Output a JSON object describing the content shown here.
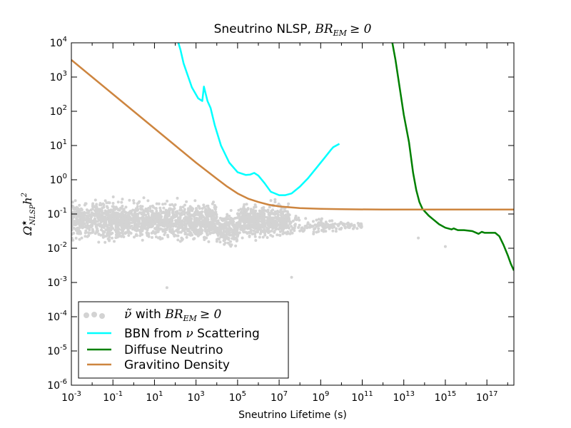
{
  "chart_data": {
    "type": "line",
    "title": {
      "text": "Sneutrino NLSP, ",
      "math": "BR",
      "math_sub": "EM",
      "math_rel": "≥ 0"
    },
    "xlabel": "Sneutrino Lifetime (s)",
    "ylabel": {
      "symbol": "Ω",
      "sup": "★",
      "sub": "NLSP",
      "tail": "h",
      "tail_sup": "2"
    },
    "xscale": "log",
    "yscale": "log",
    "xlim_exp": [
      -3,
      18.3
    ],
    "ylim_exp": [
      -6,
      4
    ],
    "x_ticks": [
      {
        "base": "10",
        "exp": "-3",
        "value": -3
      },
      {
        "base": "10",
        "exp": "-1",
        "value": -1
      },
      {
        "base": "10",
        "exp": "1",
        "value": 1
      },
      {
        "base": "10",
        "exp": "3",
        "value": 3
      },
      {
        "base": "10",
        "exp": "5",
        "value": 5
      },
      {
        "base": "10",
        "exp": "7",
        "value": 7
      },
      {
        "base": "10",
        "exp": "9",
        "value": 9
      },
      {
        "base": "10",
        "exp": "11",
        "value": 11
      },
      {
        "base": "10",
        "exp": "13",
        "value": 13
      },
      {
        "base": "10",
        "exp": "15",
        "value": 15
      },
      {
        "base": "10",
        "exp": "17",
        "value": 17
      }
    ],
    "y_ticks": [
      {
        "base": "10",
        "exp": "4",
        "value": 4
      },
      {
        "base": "10",
        "exp": "3",
        "value": 3
      },
      {
        "base": "10",
        "exp": "2",
        "value": 2
      },
      {
        "base": "10",
        "exp": "1",
        "value": 1
      },
      {
        "base": "10",
        "exp": "0",
        "value": 0
      },
      {
        "base": "10",
        "exp": "-1",
        "value": -1
      },
      {
        "base": "10",
        "exp": "-2",
        "value": -2
      },
      {
        "base": "10",
        "exp": "-3",
        "value": -3
      },
      {
        "base": "10",
        "exp": "-4",
        "value": -4
      },
      {
        "base": "10",
        "exp": "-5",
        "value": -5
      },
      {
        "base": "10",
        "exp": "-6",
        "value": -6
      }
    ],
    "legend": {
      "location": "lower-left",
      "entries": [
        {
          "name": "scatter",
          "prefix_math": "ν̃",
          "text": " with ",
          "math": "BR",
          "math_sub": "EM",
          "math_rel": "≥ 0",
          "color": "#d3d3d3",
          "kind": "scatter"
        },
        {
          "name": "bbn",
          "text": "BBN from ",
          "math": "ν",
          "text2": " Scattering",
          "color": "#00ffff",
          "kind": "line"
        },
        {
          "name": "diffuse",
          "text": "Diffuse Neutrino",
          "color": "#008000",
          "kind": "line"
        },
        {
          "name": "gravitino",
          "text": "Gravitino Density",
          "color": "#cd853f",
          "kind": "line"
        }
      ]
    },
    "series": [
      {
        "name": "BBN from ν Scattering",
        "color": "#00ffff",
        "log10_x": [
          2.15,
          2.25,
          2.4,
          2.6,
          2.8,
          3.1,
          3.3,
          3.38,
          3.45,
          3.55,
          3.7,
          3.9,
          4.2,
          4.6,
          5.0,
          5.4,
          5.6,
          5.8,
          6.0,
          6.3,
          6.6,
          7.0,
          7.3,
          7.6,
          8.0,
          8.4,
          8.8,
          9.2,
          9.5,
          9.6,
          9.9
        ],
        "log10_y": [
          4.0,
          3.8,
          3.4,
          3.05,
          2.7,
          2.38,
          2.3,
          2.72,
          2.55,
          2.3,
          2.1,
          1.6,
          1.0,
          0.5,
          0.22,
          0.14,
          0.15,
          0.2,
          0.12,
          -0.1,
          -0.35,
          -0.45,
          -0.45,
          -0.4,
          -0.2,
          0.05,
          0.35,
          0.65,
          0.88,
          0.95,
          1.05
        ]
      },
      {
        "name": "Diffuse Neutrino",
        "color": "#008000",
        "log10_x": [
          12.45,
          12.6,
          12.8,
          13.0,
          13.25,
          13.45,
          13.6,
          13.75,
          13.9,
          14.05,
          14.2,
          14.4,
          14.7,
          15.0,
          15.3,
          15.4,
          15.6,
          15.9,
          16.3,
          16.6,
          16.75,
          16.9,
          17.1,
          17.4,
          17.6,
          17.8,
          18.0,
          18.15,
          18.3
        ],
        "log10_y": [
          4.0,
          3.5,
          2.7,
          1.9,
          1.1,
          0.2,
          -0.3,
          -0.65,
          -0.85,
          -0.95,
          -1.05,
          -1.15,
          -1.3,
          -1.4,
          -1.45,
          -1.42,
          -1.47,
          -1.47,
          -1.5,
          -1.58,
          -1.52,
          -1.55,
          -1.55,
          -1.55,
          -1.65,
          -1.9,
          -2.2,
          -2.45,
          -2.65
        ]
      },
      {
        "name": "Gravitino Density",
        "color": "#cd853f",
        "log10_x": [
          -3,
          -2,
          -1,
          0,
          1,
          2,
          3,
          4,
          4.5,
          5,
          5.5,
          6,
          6.5,
          7,
          8,
          9,
          10,
          12,
          14,
          16,
          18.3
        ],
        "log10_y": [
          3.5,
          3.0,
          2.5,
          2.0,
          1.5,
          1.0,
          0.5,
          0.03,
          -0.2,
          -0.4,
          -0.55,
          -0.65,
          -0.73,
          -0.78,
          -0.83,
          -0.85,
          -0.86,
          -0.87,
          -0.87,
          -0.87,
          -0.87
        ]
      }
    ],
    "scatter_cloud": {
      "name": "ν̃ with BR_EM ≥ 0",
      "color": "#d3d3d3",
      "description_ranges": [
        {
          "x_from": -3,
          "x_to": 4.0,
          "y_center": -1.2,
          "y_spread": 0.55
        },
        {
          "x_from": 4.0,
          "x_to": 5.0,
          "y_center": -1.45,
          "y_spread": 0.45
        },
        {
          "x_from": 5.0,
          "x_to": 7.5,
          "y_center": -1.2,
          "y_spread": 0.5
        },
        {
          "x_from": 7.5,
          "x_to": 11,
          "y_center": -1.35,
          "y_spread": 0.4
        }
      ],
      "outliers": [
        {
          "log10_x": 1.6,
          "log10_y": -3.15
        },
        {
          "log10_x": 7.6,
          "log10_y": -2.85
        },
        {
          "log10_x": 15.0,
          "log10_y": -1.95
        },
        {
          "log10_x": 13.7,
          "log10_y": -1.7
        }
      ]
    }
  }
}
